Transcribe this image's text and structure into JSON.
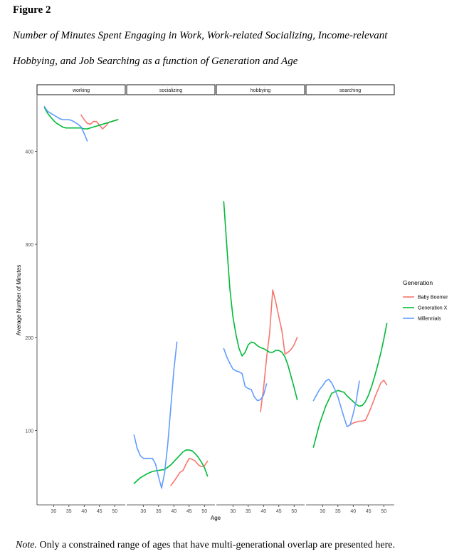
{
  "figure": {
    "label": "Figure 2",
    "subtitle_line1": "Number of Minutes Spent Engaging in Work, Work-related Socializing, Income-relevant",
    "subtitle_line2": "Hobbying, and Job Searching as a function of Generation and Age",
    "note_label": "Note.",
    "note_text": " Only a constrained range of ages that have multi-generational overlap are presented here."
  },
  "chart_data": {
    "type": "line",
    "xlabel": "Age",
    "ylabel": "Average Number of Minutes",
    "xlim": [
      25.5,
      52.5
    ],
    "ylim": [
      20,
      460
    ],
    "x_ticks": [
      30,
      35,
      40,
      45,
      50
    ],
    "y_ticks": [
      100,
      200,
      300,
      400
    ],
    "grid": false,
    "legend": {
      "title": "Generation",
      "position": "right"
    },
    "panels": [
      {
        "name": "working",
        "series": [
          {
            "name": "Baby Boomer",
            "color": "#F8766D",
            "x": [
              39,
              40,
              41,
              42,
              43,
              44,
              45,
              46,
              47,
              48,
              49,
              50,
              51
            ],
            "y": [
              439,
              434,
              430,
              429,
              432,
              432,
              428,
              424,
              427,
              431,
              432,
              433,
              434
            ]
          },
          {
            "name": "Generation X",
            "color": "#00BA38",
            "x": [
              27,
              28,
              29,
              30,
              31,
              32,
              33,
              34,
              35,
              36,
              37,
              38,
              39,
              40,
              41,
              42,
              43,
              44,
              45,
              46,
              47,
              48,
              49,
              50,
              51
            ],
            "y": [
              447,
              441,
              437,
              433,
              430,
              428,
              426,
              425,
              425,
              425,
              425,
              425,
              425,
              424,
              424,
              425,
              426,
              427,
              428,
              429,
              430,
              431,
              432,
              433,
              434
            ]
          },
          {
            "name": "Millennials",
            "color": "#619CFF",
            "x": [
              27,
              28,
              29,
              30,
              31,
              32,
              33,
              34,
              35,
              36,
              37,
              38,
              39,
              40,
              41
            ],
            "y": [
              448,
              443,
              441,
              439,
              437,
              435,
              434,
              434,
              434,
              433,
              431,
              429,
              426,
              419,
              411
            ]
          }
        ]
      },
      {
        "name": "socializing",
        "series": [
          {
            "name": "Baby Boomer",
            "color": "#F8766D",
            "x": [
              39,
              40,
              41,
              42,
              43,
              44,
              45,
              46,
              47,
              48,
              49,
              50,
              51
            ],
            "y": [
              41,
              45,
              50,
              55,
              57,
              64,
              70,
              69,
              67,
              63,
              61,
              62,
              67
            ]
          },
          {
            "name": "Generation X",
            "color": "#00BA38",
            "x": [
              27,
              29,
              31,
              33,
              35,
              37,
              39,
              41,
              43,
              44,
              45,
              46,
              47,
              48,
              49,
              50,
              51
            ],
            "y": [
              43,
              49,
              53,
              56,
              57,
              58,
              63,
              70,
              77,
              79,
              79,
              78,
              75,
              71,
              66,
              60,
              51
            ]
          },
          {
            "name": "Millennials",
            "color": "#619CFF",
            "x": [
              27,
              28,
              29,
              30,
              31,
              32,
              33,
              34,
              35,
              36,
              37,
              38,
              39,
              40,
              41
            ],
            "y": [
              95,
              81,
              73,
              70,
              70,
              70,
              70,
              64,
              50,
              38,
              55,
              85,
              125,
              165,
              195
            ]
          }
        ]
      },
      {
        "name": "hobbying",
        "series": [
          {
            "name": "Baby Boomer",
            "color": "#F8766D",
            "x": [
              39,
              40,
              41,
              42,
              43,
              44,
              45,
              46,
              47,
              48,
              49,
              50,
              51
            ],
            "y": [
              120,
              145,
              178,
              205,
              251,
              238,
              222,
              207,
              182,
              184,
              187,
              192,
              200
            ]
          },
          {
            "name": "Generation X",
            "color": "#00BA38",
            "x": [
              27,
              28,
              29,
              30,
              31,
              32,
              33,
              34,
              35,
              36,
              37,
              38,
              39,
              40,
              41,
              42,
              43,
              44,
              45,
              46,
              47,
              48,
              49,
              50,
              51
            ],
            "y": [
              346,
              298,
              252,
              222,
              203,
              188,
              180,
              184,
              192,
              195,
              194,
              191,
              189,
              188,
              186,
              184,
              184,
              186,
              186,
              184,
              179,
              170,
              158,
              146,
              133
            ]
          },
          {
            "name": "Millennials",
            "color": "#619CFF",
            "x": [
              27,
              28,
              29,
              30,
              31,
              32,
              33,
              34,
              35,
              36,
              37,
              38,
              39,
              40,
              41
            ],
            "y": [
              188,
              179,
              172,
              166,
              164,
              163,
              161,
              147,
              145,
              144,
              136,
              132,
              133,
              138,
              150
            ]
          }
        ]
      },
      {
        "name": "searching",
        "series": [
          {
            "name": "Baby Boomer",
            "color": "#F8766D",
            "x": [
              39,
              40,
              41,
              42,
              43,
              44,
              45,
              46,
              47,
              48,
              49,
              50,
              51
            ],
            "y": [
              106,
              108,
              109,
              110,
              110,
              111,
              118,
              126,
              135,
              143,
              151,
              154,
              149
            ]
          },
          {
            "name": "Generation X",
            "color": "#00BA38",
            "x": [
              27,
              29,
              31,
              33,
              35,
              37,
              38,
              39,
              40,
              41,
              42,
              43,
              44,
              45,
              46,
              47,
              48,
              49,
              50,
              51
            ],
            "y": [
              82,
              107,
              126,
              140,
              143,
              141,
              137,
              134,
              131,
              128,
              126,
              127,
              131,
              138,
              147,
              158,
              170,
              183,
              198,
              215
            ]
          },
          {
            "name": "Millennials",
            "color": "#619CFF",
            "x": [
              27,
              28,
              29,
              30,
              31,
              32,
              33,
              34,
              35,
              36,
              37,
              38,
              39,
              40,
              41,
              42
            ],
            "y": [
              132,
              138,
              144,
              148,
              153,
              155,
              151,
              144,
              136,
              125,
              114,
              104,
              106,
              118,
              132,
              153
            ]
          }
        ]
      }
    ]
  }
}
